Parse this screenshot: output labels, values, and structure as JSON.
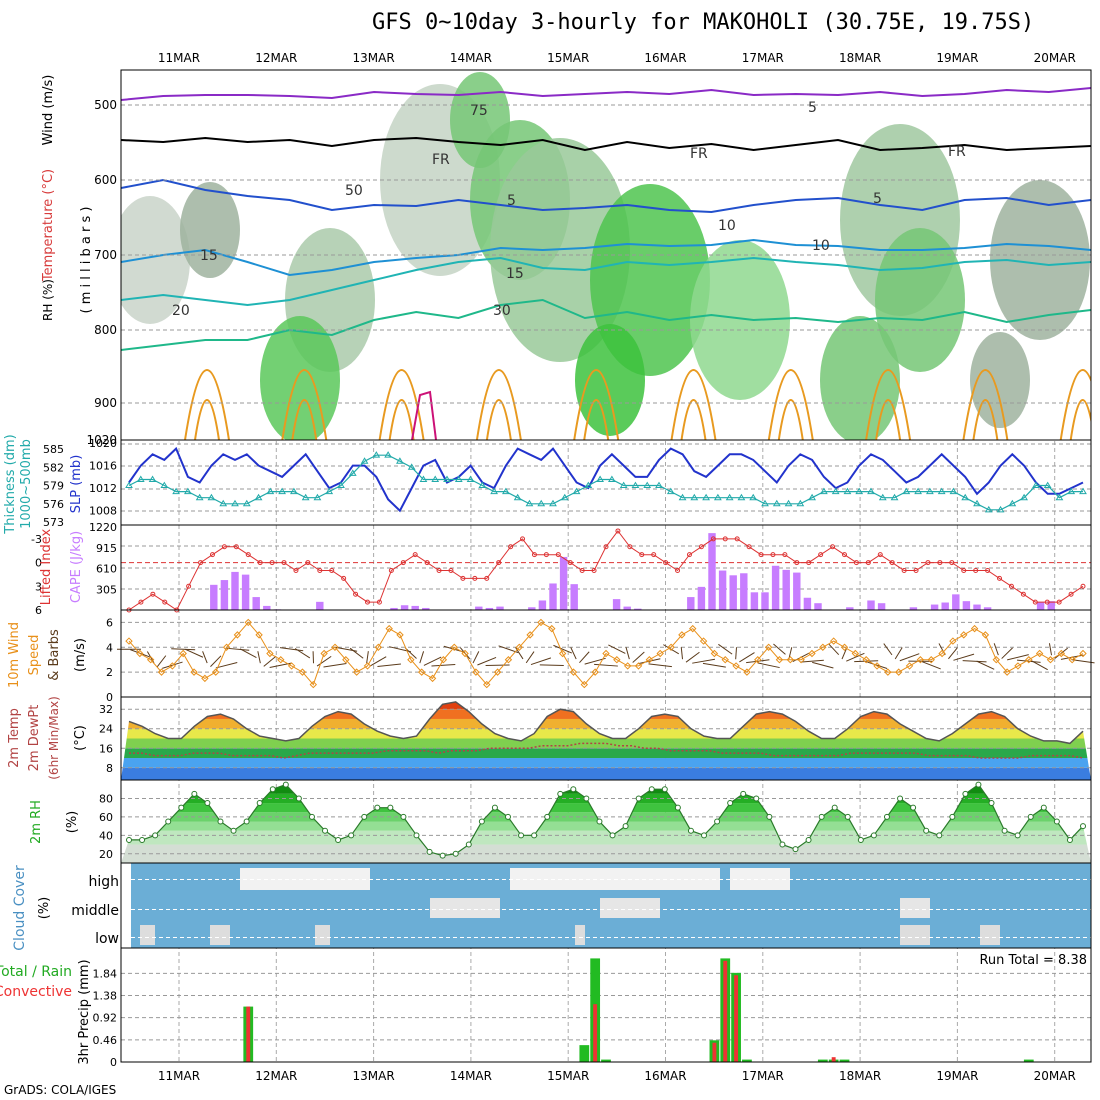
{
  "title": "GFS 0~10day 3-hourly for MAKOHOLI (30.75E, 19.75S)",
  "footer": "GrADS: COLA/IGES",
  "dates": [
    "11MAR",
    "12MAR",
    "13MAR",
    "14MAR",
    "15MAR",
    "16MAR",
    "17MAR",
    "18MAR",
    "19MAR",
    "20MAR"
  ],
  "colors": {
    "slp": "#2233cc",
    "thickness": "#22aaaa",
    "lifted": "#dd3333",
    "cape": "#c77dff",
    "speed": "#e8901a",
    "barb": "#5a3a1a",
    "temp_line": "#555555",
    "dew": "#b24444",
    "rh_line": "#2a7a2a",
    "cloud": "#6baed6",
    "rain_total": "#22bb22",
    "rain_conv": "#ee3333"
  },
  "labels": {
    "p1": {
      "rh": "RH (%)",
      "temp": "Temperature (°C)",
      "wind": "Wind (m/s)",
      "axis": "( m i l l i b a r s )"
    },
    "p2": {
      "thick": "Thickness (dm)",
      "mb": "1000~500mb",
      "slp": "SLP (mb)"
    },
    "p3": {
      "li": "Lifted Index",
      "cape": "CAPE (J/kg)"
    },
    "p4": {
      "w1": "10m Wind",
      "w2": "Speed",
      "w3": "& Barbs",
      "unit": "(m/s)"
    },
    "p5": {
      "t1": "2m Temp",
      "t2": "2m DewPt",
      "t3": "(6hr Min/Max)",
      "unit": "(°C)"
    },
    "p6": {
      "r1": "2m RH",
      "unit": "(%)"
    },
    "p7": {
      "c1": "Cloud Cover",
      "unit": "(%)"
    },
    "p8": {
      "r1": "Total / Rain",
      "r2": "Convective",
      "r3": "3hr Precip",
      "unit": "(mm)",
      "run_total": "Run Total = 8.38"
    }
  },
  "chart_data": [
    {
      "type": "heatmap",
      "name": "cross-section",
      "y_ticks": [
        "500",
        "600",
        "700",
        "800",
        "900",
        "1020"
      ],
      "contour_labels": [
        "75",
        "5",
        "FR",
        "FR",
        "FR",
        "5",
        "5",
        "10",
        "10",
        "15",
        "15",
        "20",
        "30",
        "50"
      ],
      "isotherms": [
        {
          "label": "5",
          "values": [
            5
          ]
        },
        {
          "label": "10",
          "values": [
            10
          ]
        },
        {
          "label": "15",
          "values": [
            15
          ]
        },
        {
          "label": "20",
          "values": [
            20
          ]
        }
      ]
    },
    {
      "type": "line",
      "name": "slp-thickness",
      "slp_ticks": [
        "1008",
        "1012",
        "1016",
        "1020"
      ],
      "thick_ticks": [
        "573",
        "576",
        "579",
        "582",
        "585"
      ],
      "series": [
        {
          "name": "SLP",
          "values": [
            1013,
            1016,
            1018,
            1017,
            1019,
            1014,
            1013,
            1016,
            1018,
            1017,
            1018,
            1016,
            1015,
            1014,
            1016,
            1018,
            1015,
            1012,
            1013,
            1016,
            1016,
            1014,
            1010,
            1008,
            1012,
            1016,
            1017,
            1013,
            1014,
            1016,
            1013,
            1012,
            1016,
            1019,
            1018,
            1017,
            1019,
            1016,
            1013,
            1012,
            1016,
            1018,
            1016,
            1014,
            1014,
            1017,
            1019,
            1018,
            1015,
            1014,
            1016,
            1018,
            1018,
            1017,
            1015,
            1013,
            1016,
            1018,
            1017,
            1014,
            1012,
            1013,
            1016,
            1018,
            1017,
            1015,
            1013,
            1014,
            1016,
            1018,
            1016,
            1014,
            1011,
            1013,
            1016,
            1018,
            1016,
            1013,
            1011,
            1011,
            1012,
            1013
          ]
        },
        {
          "name": "Thickness",
          "values": [
            579,
            580,
            580,
            579,
            578,
            578,
            577,
            577,
            576,
            576,
            576,
            577,
            578,
            578,
            578,
            577,
            577,
            578,
            579,
            581,
            583,
            584,
            584,
            583,
            582,
            580,
            580,
            580,
            580,
            580,
            579,
            578,
            578,
            577,
            576,
            576,
            576,
            577,
            578,
            579,
            580,
            580,
            579,
            579,
            579,
            579,
            578,
            577,
            577,
            577,
            577,
            577,
            577,
            577,
            576,
            576,
            576,
            576,
            577,
            578,
            578,
            578,
            578,
            578,
            577,
            577,
            578,
            578,
            578,
            578,
            578,
            577,
            576,
            575,
            575,
            576,
            577,
            579,
            579,
            577,
            578,
            578
          ]
        }
      ]
    },
    {
      "type": "bar",
      "name": "cape-lifted-index",
      "cape_ticks": [
        "305",
        "610",
        "915",
        "1220"
      ],
      "li_ticks": [
        "6",
        "3",
        "0",
        "-3"
      ],
      "series": [
        {
          "name": "CAPE",
          "values": [
            0,
            0,
            0,
            0,
            0,
            0,
            0,
            0,
            370,
            440,
            560,
            520,
            190,
            60,
            10,
            0,
            0,
            0,
            120,
            0,
            0,
            0,
            0,
            0,
            0,
            30,
            70,
            60,
            30,
            0,
            0,
            0,
            0,
            50,
            30,
            50,
            0,
            0,
            40,
            140,
            390,
            780,
            380,
            0,
            0,
            0,
            160,
            50,
            20,
            0,
            0,
            0,
            0,
            190,
            340,
            1130,
            580,
            510,
            540,
            260,
            260,
            650,
            590,
            550,
            180,
            100,
            0,
            0,
            40,
            0,
            140,
            100,
            0,
            0,
            40,
            0,
            80,
            110,
            230,
            130,
            80,
            40,
            0,
            0,
            0,
            0,
            120,
            130,
            0,
            0,
            0
          ]
        },
        {
          "name": "Lifted Index",
          "values": [
            6,
            5,
            4,
            5,
            6,
            3,
            0,
            -1,
            -2,
            -2,
            -1,
            0,
            0,
            0,
            1,
            0,
            1,
            1,
            2,
            4,
            5,
            5,
            1,
            0,
            -1,
            0,
            1,
            1,
            2,
            2,
            2,
            0,
            -2,
            -3,
            -1,
            -1,
            -1,
            0,
            1,
            1,
            -2,
            -4,
            -2,
            -1,
            -1,
            0,
            1,
            -1,
            -2,
            -3,
            -3,
            -3,
            -2,
            -1,
            -1,
            -1,
            0,
            0,
            -1,
            -2,
            -1,
            0,
            0,
            -1,
            0,
            1,
            1,
            0,
            0,
            0,
            1,
            1,
            1,
            2,
            3,
            4,
            5,
            5,
            5,
            4,
            3
          ]
        }
      ]
    },
    {
      "type": "line",
      "name": "wind-speed",
      "y_ticks": [
        "0",
        "2",
        "4",
        "6"
      ],
      "series": [
        {
          "name": "Speed",
          "values": [
            4.5,
            3.5,
            3,
            2,
            2.5,
            3.5,
            2,
            1.5,
            2,
            4,
            5,
            6,
            5,
            3.5,
            3,
            2.5,
            2,
            1,
            3.5,
            4,
            3,
            2,
            2.5,
            4,
            5.5,
            5,
            3,
            2,
            1.5,
            3,
            4,
            3.5,
            2,
            1,
            2,
            3,
            4,
            5,
            6,
            5.5,
            3.5,
            2,
            1,
            2,
            3.5,
            3,
            2.5,
            2.5,
            3,
            3.5,
            4,
            5,
            5.5,
            4.5,
            3.5,
            3,
            2.5,
            2,
            3,
            4,
            3,
            3,
            3,
            3.5,
            4,
            4.5,
            4,
            3.5,
            3,
            2.5,
            2,
            2,
            2.5,
            3,
            3,
            3.5,
            4.5,
            5,
            5.5,
            5,
            3,
            2,
            2.5,
            3,
            3.5,
            3,
            3.5,
            3,
            3.5
          ]
        }
      ]
    },
    {
      "type": "area",
      "name": "temperature",
      "y_ticks": [
        "8",
        "16",
        "24",
        "32"
      ],
      "series": [
        {
          "name": "2m Temp",
          "values": [
            27,
            25,
            22,
            20,
            20,
            25,
            29,
            30,
            28,
            24,
            21,
            20,
            19,
            20,
            25,
            29,
            31,
            30,
            26,
            23,
            21,
            20,
            21,
            28,
            34,
            35,
            31,
            26,
            22,
            20,
            19,
            22,
            29,
            32,
            31,
            26,
            22,
            20,
            20,
            24,
            29,
            30,
            29,
            24,
            21,
            20,
            20,
            25,
            30,
            31,
            30,
            27,
            23,
            20,
            20,
            24,
            29,
            31,
            30,
            26,
            23,
            20,
            19,
            22,
            26,
            30,
            31,
            29,
            24,
            21,
            19,
            19,
            18,
            23
          ]
        },
        {
          "name": "2m DewPt",
          "values": [
            14,
            14,
            13,
            13,
            13,
            14,
            14,
            14,
            13,
            13,
            13,
            13,
            12,
            13,
            14,
            14,
            14,
            14,
            14,
            14,
            15,
            15,
            15,
            15,
            14,
            15,
            15,
            15,
            16,
            16,
            16,
            16,
            17,
            17,
            17,
            18,
            18,
            18,
            17,
            17,
            16,
            16,
            15,
            15,
            15,
            15,
            14,
            14,
            14,
            14,
            13,
            13,
            13,
            13,
            13,
            13,
            14,
            14,
            14,
            14,
            14,
            14,
            13,
            13,
            13,
            13,
            12,
            12,
            12,
            12,
            13,
            13,
            13,
            13,
            12
          ]
        }
      ]
    },
    {
      "type": "area",
      "name": "relative-humidity",
      "y_ticks": [
        "20",
        "40",
        "60",
        "80"
      ],
      "series": [
        {
          "name": "2m RH",
          "values": [
            35,
            35,
            40,
            55,
            70,
            85,
            75,
            55,
            45,
            55,
            75,
            90,
            95,
            80,
            60,
            45,
            35,
            40,
            60,
            70,
            70,
            60,
            40,
            22,
            18,
            20,
            30,
            55,
            70,
            60,
            40,
            40,
            60,
            85,
            90,
            80,
            55,
            40,
            50,
            80,
            90,
            90,
            70,
            45,
            40,
            55,
            75,
            85,
            80,
            60,
            30,
            25,
            35,
            60,
            70,
            60,
            35,
            40,
            60,
            80,
            70,
            45,
            40,
            60,
            85,
            95,
            75,
            45,
            40,
            60,
            70,
            55,
            35,
            50
          ]
        }
      ]
    },
    {
      "type": "heatmap",
      "name": "cloud-cover",
      "rows": [
        "high",
        "middle",
        "low"
      ]
    },
    {
      "type": "bar",
      "name": "precipitation",
      "y_ticks": [
        "0",
        "0.46",
        "0.92",
        "1.38",
        "1.84"
      ],
      "series": [
        {
          "name": "Total",
          "values": [
            0,
            0,
            0,
            0,
            0,
            0,
            0,
            0,
            0,
            0,
            0,
            1.15,
            0,
            0,
            0,
            0,
            0,
            0,
            0,
            0,
            0,
            0,
            0,
            0,
            0,
            0,
            0,
            0,
            0,
            0,
            0,
            0,
            0,
            0,
            0,
            0,
            0,
            0,
            0,
            0,
            0,
            0,
            0.35,
            2.15,
            0.05,
            0,
            0,
            0,
            0,
            0,
            0,
            0,
            0,
            0,
            0.45,
            2.15,
            1.85,
            0.05,
            0,
            0,
            0,
            0,
            0,
            0,
            0.05,
            0.05,
            0.05,
            0,
            0,
            0,
            0,
            0,
            0,
            0,
            0,
            0,
            0,
            0,
            0,
            0,
            0,
            0,
            0,
            0.05,
            0,
            0,
            0,
            0,
            0
          ]
        },
        {
          "name": "Convective",
          "values": [
            0,
            0,
            0,
            0,
            0,
            0,
            0,
            0,
            0,
            0,
            0,
            1.15,
            0,
            0,
            0,
            0,
            0,
            0,
            0,
            0,
            0,
            0,
            0,
            0,
            0,
            0,
            0,
            0,
            0,
            0,
            0,
            0,
            0,
            0,
            0,
            0,
            0,
            0,
            0,
            0,
            0,
            0,
            0,
            1.2,
            0,
            0,
            0,
            0,
            0,
            0,
            0,
            0,
            0,
            0,
            0.4,
            2.1,
            1.8,
            0,
            0,
            0,
            0,
            0,
            0,
            0,
            0,
            0.1,
            0,
            0,
            0,
            0,
            0,
            0,
            0,
            0,
            0,
            0,
            0,
            0,
            0,
            0,
            0,
            0,
            0,
            0,
            0,
            0,
            0,
            0
          ]
        }
      ]
    }
  ]
}
